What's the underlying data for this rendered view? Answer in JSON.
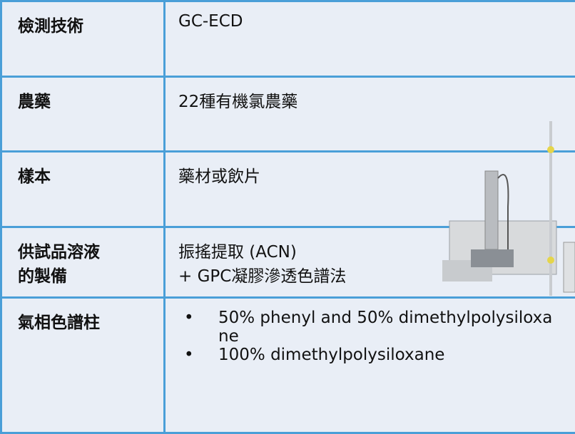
{
  "table": {
    "rows": [
      [
        [
          "檢測技術"
        ],
        [
          "GC-ECD"
        ]
      ],
      [
        [
          "農藥"
        ],
        [
          "22種有機氯農藥"
        ]
      ],
      [
        [
          "樣本"
        ],
        [
          "藥材或飲片"
        ]
      ],
      [
        [
          "供試品溶液",
          "的製備"
        ],
        [
          "振搖提取 (ACN)",
          "+ GPC凝膠滲透色譜法"
        ]
      ],
      [
        [
          "氣相色譜柱"
        ],
        {
          "bullets": [
            "50% phenyl and 50% dimethylpolysiloxane",
            "100% dimethylpolysiloxane"
          ]
        }
      ]
    ]
  }
}
